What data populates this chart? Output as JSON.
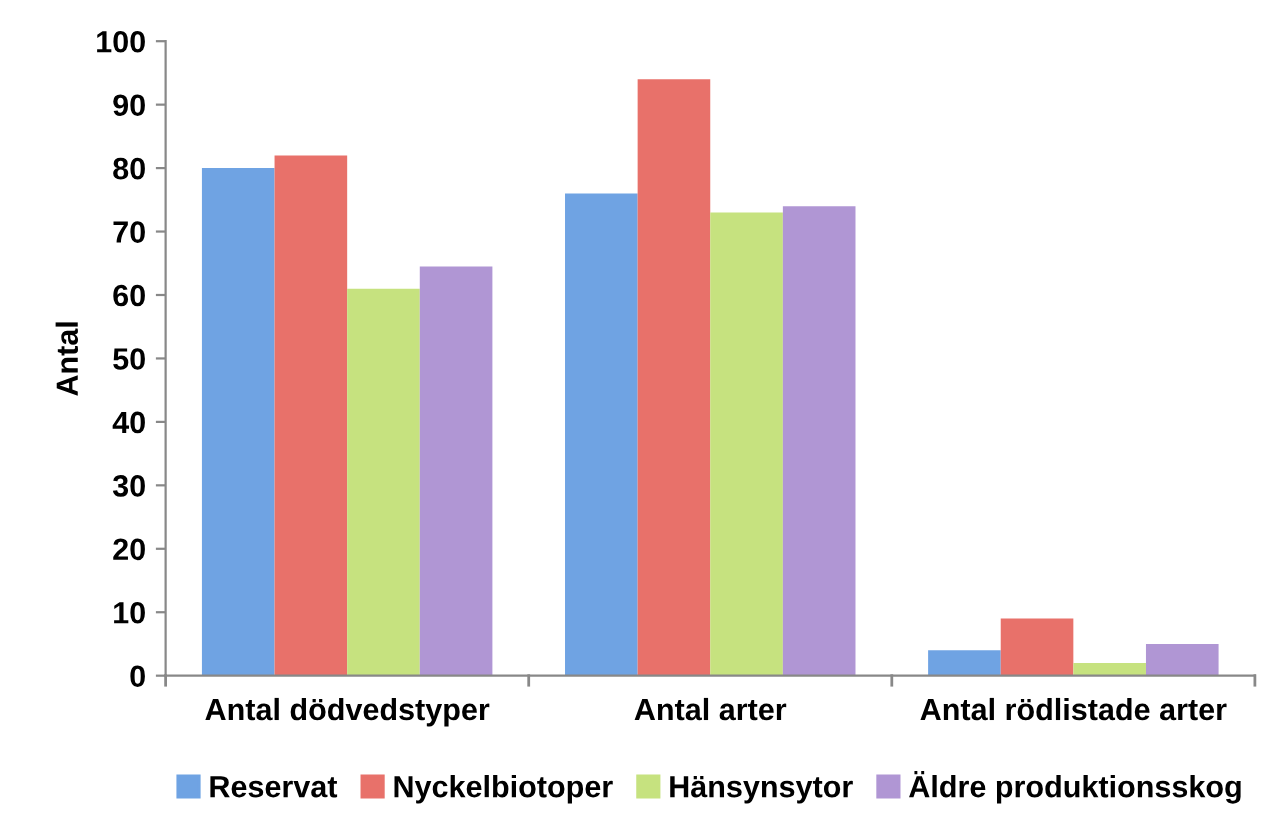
{
  "chart_data": {
    "type": "bar",
    "ylabel": "Antal",
    "categories": [
      "Antal dödvedstyper",
      "Antal arter",
      "Antal rödlistade arter"
    ],
    "series": [
      {
        "name": "Reservat",
        "color": "#6fa3e3",
        "values": [
          80,
          76,
          4
        ]
      },
      {
        "name": "Nyckelbiotoper",
        "color": "#e8716a",
        "values": [
          82,
          94,
          9
        ]
      },
      {
        "name": "Hänsynsytor",
        "color": "#c6e27f",
        "values": [
          61,
          73,
          2
        ]
      },
      {
        "name": "Äldre produktionsskog",
        "color": "#b096d4",
        "values": [
          64.5,
          74,
          5
        ]
      }
    ],
    "ylim": [
      0,
      100
    ],
    "yticks": [
      0,
      10,
      20,
      30,
      40,
      50,
      60,
      70,
      80,
      90,
      100
    ],
    "grid": false,
    "legend": "bottom"
  }
}
